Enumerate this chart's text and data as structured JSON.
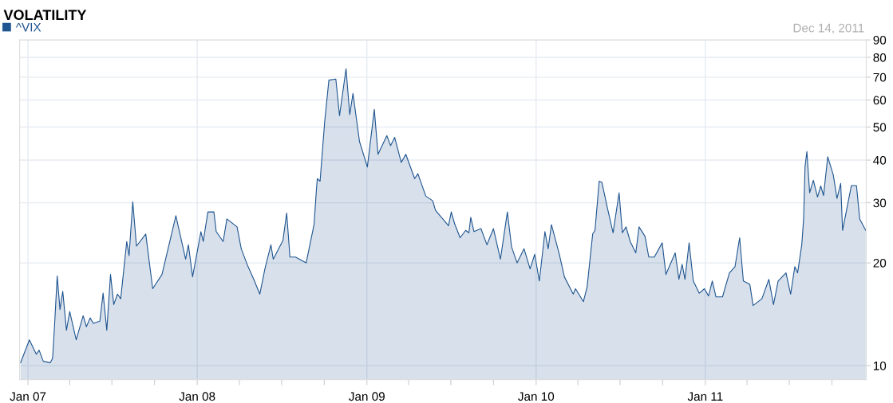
{
  "chart_data": {
    "type": "area",
    "title": "VOLATILITY",
    "annotations": [
      "Dec 14, 2011"
    ],
    "legend": "top left",
    "grid": true,
    "log": "y",
    "xlim": [
      "2006-12-14",
      "2011-12-14"
    ],
    "ylim": [
      9.1,
      90
    ],
    "xticks": [
      {
        "value": "2007-01-01",
        "label": "Jan 07"
      },
      {
        "value": "2007-04-01",
        "label": null
      },
      {
        "value": "2007-07-01",
        "label": null
      },
      {
        "value": "2007-10-01",
        "label": null
      },
      {
        "value": "2008-01-01",
        "label": "Jan 08"
      },
      {
        "value": "2008-04-01",
        "label": null
      },
      {
        "value": "2008-07-01",
        "label": null
      },
      {
        "value": "2008-10-01",
        "label": null
      },
      {
        "value": "2009-01-01",
        "label": "Jan 09"
      },
      {
        "value": "2009-04-01",
        "label": null
      },
      {
        "value": "2009-07-01",
        "label": null
      },
      {
        "value": "2009-10-01",
        "label": null
      },
      {
        "value": "2010-01-01",
        "label": "Jan 10"
      },
      {
        "value": "2010-04-01",
        "label": null
      },
      {
        "value": "2010-07-01",
        "label": null
      },
      {
        "value": "2010-10-01",
        "label": null
      },
      {
        "value": "2011-01-01",
        "label": "Jan 11"
      },
      {
        "value": "2011-04-01",
        "label": null
      },
      {
        "value": "2011-07-01",
        "label": null
      },
      {
        "value": "2011-10-01",
        "label": null
      }
    ],
    "yticks": [
      10,
      20,
      30,
      40,
      50,
      60,
      70,
      80,
      90
    ],
    "x": [
      "2006-12-16",
      "2007-01-04",
      "2007-01-19",
      "2007-01-25",
      "2007-02-03",
      "2007-02-18",
      "2007-02-23",
      "2007-02-27",
      "2007-03-05",
      "2007-03-11",
      "2007-03-17",
      "2007-03-25",
      "2007-04-01",
      "2007-04-15",
      "2007-04-30",
      "2007-05-07",
      "2007-05-15",
      "2007-05-22",
      "2007-06-05",
      "2007-06-12",
      "2007-06-20",
      "2007-06-28",
      "2007-07-05",
      "2007-07-13",
      "2007-07-20",
      "2007-08-02",
      "2007-08-07",
      "2007-08-15",
      "2007-08-23",
      "2007-09-12",
      "2007-09-27",
      "2007-10-17",
      "2007-11-16",
      "2007-12-07",
      "2007-12-13",
      "2007-12-22",
      "2008-01-09",
      "2008-01-14",
      "2008-01-24",
      "2008-02-06",
      "2008-02-11",
      "2008-02-26",
      "2008-03-05",
      "2008-03-27",
      "2008-04-05",
      "2008-04-19",
      "2008-05-02",
      "2008-05-15",
      "2008-05-26",
      "2008-06-08",
      "2008-06-13",
      "2008-07-04",
      "2008-07-12",
      "2008-07-19",
      "2008-07-31",
      "2008-08-23",
      "2008-09-09",
      "2008-09-14",
      "2008-09-16",
      "2008-09-22",
      "2008-10-02",
      "2008-10-11",
      "2008-10-26",
      "2008-11-03",
      "2008-11-17",
      "2008-11-25",
      "2008-12-02",
      "2008-12-16",
      "2009-01-02",
      "2009-01-17",
      "2009-01-25",
      "2009-02-13",
      "2009-02-21",
      "2009-03-02",
      "2009-03-16",
      "2009-03-26",
      "2009-04-14",
      "2009-04-21",
      "2009-05-08",
      "2009-05-23",
      "2009-05-29",
      "2009-06-26",
      "2009-07-02",
      "2009-07-09",
      "2009-07-21",
      "2009-08-02",
      "2009-08-09",
      "2009-08-13",
      "2009-08-20",
      "2009-09-04",
      "2009-09-17",
      "2009-10-01",
      "2009-10-16",
      "2009-10-31",
      "2009-11-09",
      "2009-11-21",
      "2009-12-06",
      "2009-12-19",
      "2009-12-29",
      "2010-01-08",
      "2010-01-20",
      "2010-01-27",
      "2010-02-03",
      "2010-02-20",
      "2010-03-03",
      "2010-03-22",
      "2010-03-27",
      "2010-04-13",
      "2010-04-21",
      "2010-05-03",
      "2010-05-08",
      "2010-05-17",
      "2010-05-23",
      "2010-06-02",
      "2010-06-16",
      "2010-06-29",
      "2010-07-06",
      "2010-07-14",
      "2010-07-23",
      "2010-08-04",
      "2010-08-11",
      "2010-08-24",
      "2010-09-01",
      "2010-09-13",
      "2010-09-30",
      "2010-10-08",
      "2010-10-28",
      "2010-11-05",
      "2010-11-12",
      "2010-11-18",
      "2010-11-27",
      "2010-12-06",
      "2010-12-19",
      "2010-12-30",
      "2011-01-08",
      "2011-01-16",
      "2011-01-24",
      "2011-02-07",
      "2011-02-22",
      "2011-03-06",
      "2011-03-16",
      "2011-03-24",
      "2011-04-07",
      "2011-04-14",
      "2011-05-03",
      "2011-05-18",
      "2011-05-28",
      "2011-06-07",
      "2011-06-24",
      "2011-07-04",
      "2011-07-13",
      "2011-07-19",
      "2011-07-28",
      "2011-08-01",
      "2011-08-04",
      "2011-08-08",
      "2011-08-14",
      "2011-08-22",
      "2011-08-31",
      "2011-09-07",
      "2011-09-13",
      "2011-09-22",
      "2011-10-04",
      "2011-10-12",
      "2011-10-20",
      "2011-10-24",
      "2011-11-12",
      "2011-11-23",
      "2011-11-30",
      "2011-12-13"
    ],
    "series": [
      {
        "name": "^VIX",
        "color": "#1f5590",
        "values": [
          10.2,
          11.9,
          10.8,
          11.1,
          10.3,
          10.2,
          10.5,
          12.9,
          18.3,
          14.6,
          16.5,
          12.7,
          14.4,
          11.9,
          14.0,
          13.0,
          13.8,
          13.3,
          13.5,
          16.3,
          12.7,
          18.5,
          15.1,
          16.2,
          15.7,
          23.1,
          21.0,
          30.2,
          22.4,
          24.3,
          16.8,
          18.5,
          27.5,
          20.5,
          22.6,
          18.2,
          24.7,
          23.1,
          28.2,
          28.2,
          24.7,
          23.1,
          26.9,
          25.5,
          22.0,
          19.6,
          17.9,
          16.2,
          19.2,
          22.6,
          20.5,
          23.3,
          28.0,
          20.8,
          20.8,
          20.0,
          25.9,
          32.6,
          35.3,
          34.7,
          51.9,
          68.6,
          69.1,
          54.0,
          74.1,
          54.4,
          62.7,
          45.4,
          38.2,
          56.3,
          41.6,
          47.2,
          44.1,
          46.6,
          39.4,
          41.6,
          35.3,
          36.5,
          31.4,
          30.4,
          28.5,
          25.7,
          28.2,
          26.1,
          23.7,
          24.9,
          24.5,
          27.2,
          24.7,
          25.2,
          22.6,
          25.2,
          20.5,
          28.2,
          22.3,
          20.0,
          22.0,
          19.2,
          21.2,
          17.7,
          24.7,
          22.0,
          25.9,
          21.2,
          18.2,
          16.2,
          16.8,
          15.4,
          17.0,
          24.3,
          24.9,
          34.7,
          34.4,
          29.7,
          24.5,
          32.1,
          24.5,
          25.5,
          23.1,
          21.4,
          25.5,
          23.9,
          20.8,
          20.8,
          22.9,
          18.5,
          21.4,
          17.9,
          19.8,
          17.9,
          22.9,
          17.7,
          16.3,
          16.8,
          16.0,
          17.7,
          15.9,
          15.9,
          18.7,
          19.5,
          23.7,
          17.7,
          17.3,
          15.0,
          15.7,
          17.9,
          15.1,
          17.7,
          18.7,
          16.2,
          19.5,
          18.7,
          22.6,
          26.9,
          38.2,
          42.4,
          32.1,
          34.9,
          31.2,
          33.6,
          31.5,
          40.9,
          36.2,
          30.9,
          34.2,
          24.9,
          33.7,
          33.7,
          26.9,
          24.9
        ]
      }
    ]
  }
}
